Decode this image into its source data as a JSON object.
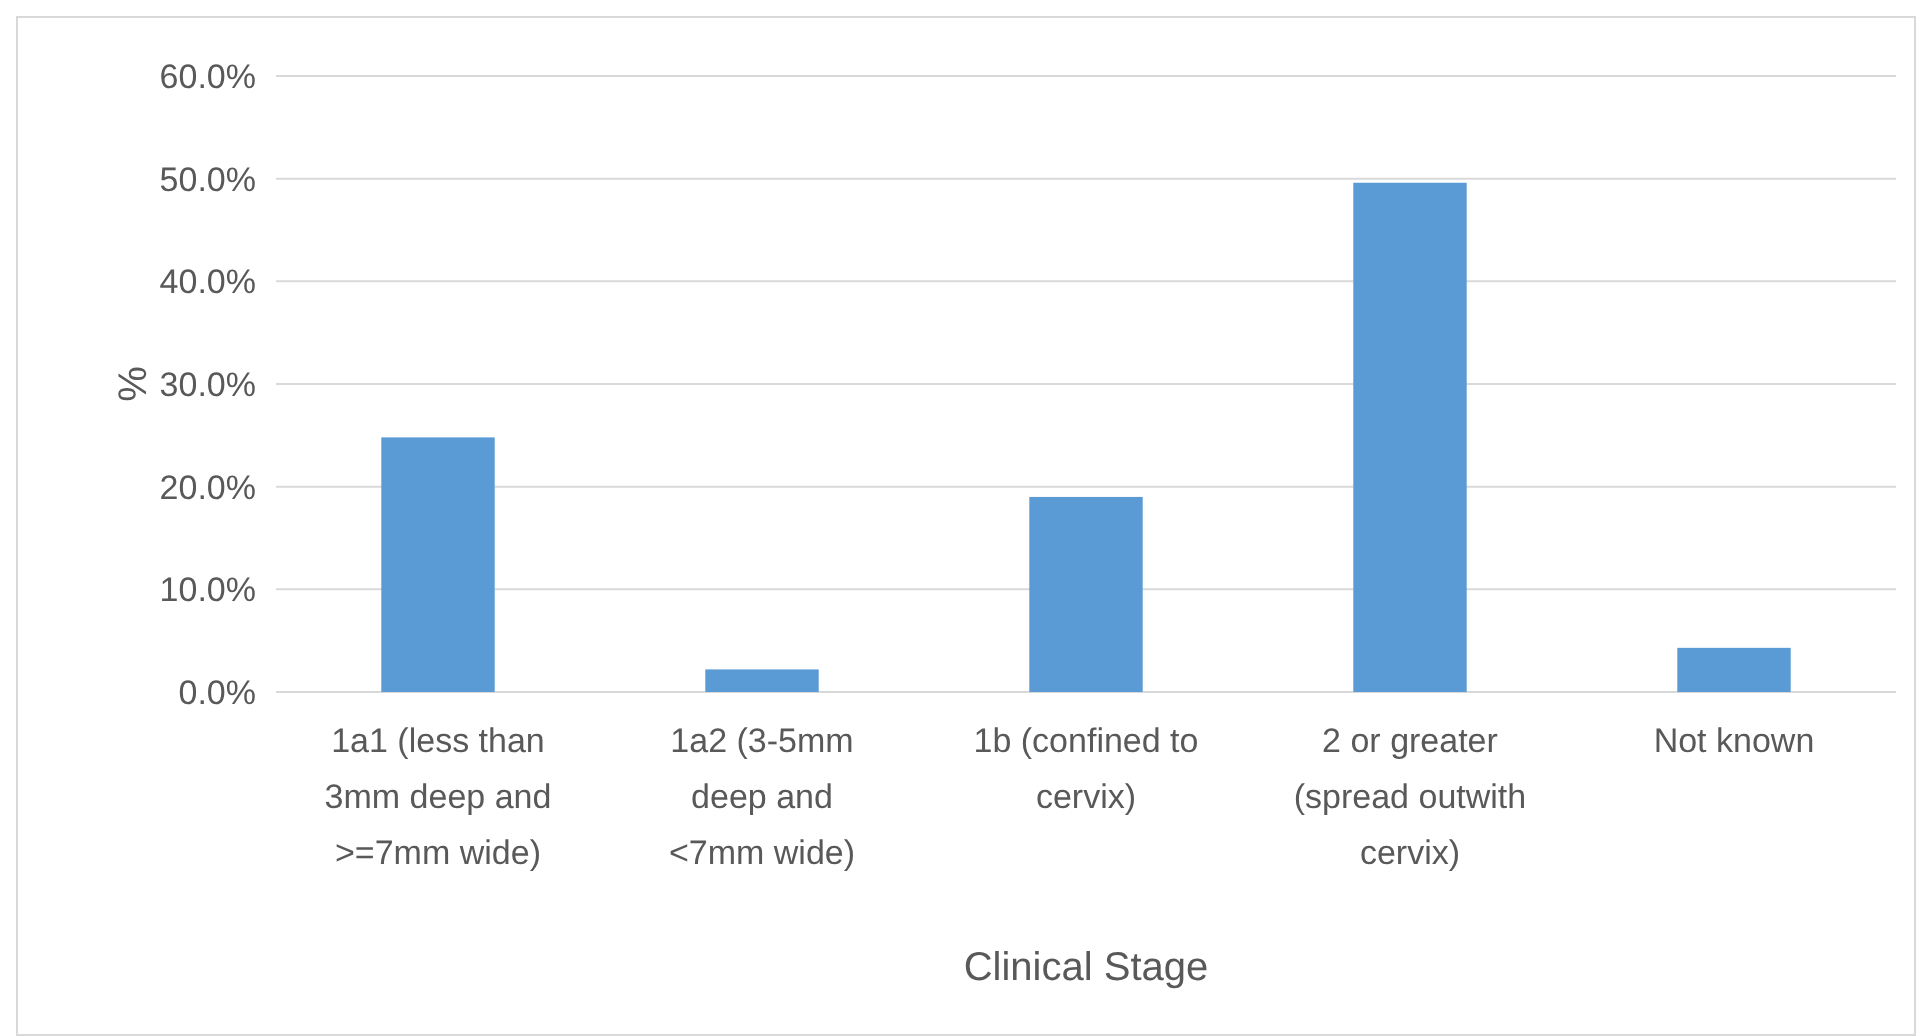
{
  "chart_data": {
    "type": "bar",
    "xlabel": "Clinical Stage",
    "ylabel": "%",
    "categories": [
      "1a1 (less than 3mm deep and >=7mm wide)",
      "1a2 (3-5mm deep and <7mm wide)",
      "1b (confined to cervix)",
      "2 or greater (spread outwith cervix)",
      "Not known"
    ],
    "values": [
      24.8,
      2.2,
      19.0,
      49.6,
      4.3
    ],
    "color": "#5b9bd5",
    "ylim": [
      0,
      60
    ],
    "yticks": [
      {
        "value": 0,
        "label": "0.0%"
      },
      {
        "value": 10,
        "label": "10.0%"
      },
      {
        "value": 20,
        "label": "20.0%"
      },
      {
        "value": 30,
        "label": "30.0%"
      },
      {
        "value": 40,
        "label": "40.0%"
      },
      {
        "value": 50,
        "label": "50.0%"
      },
      {
        "value": 60,
        "label": "60.0%"
      }
    ],
    "grid": "y"
  }
}
